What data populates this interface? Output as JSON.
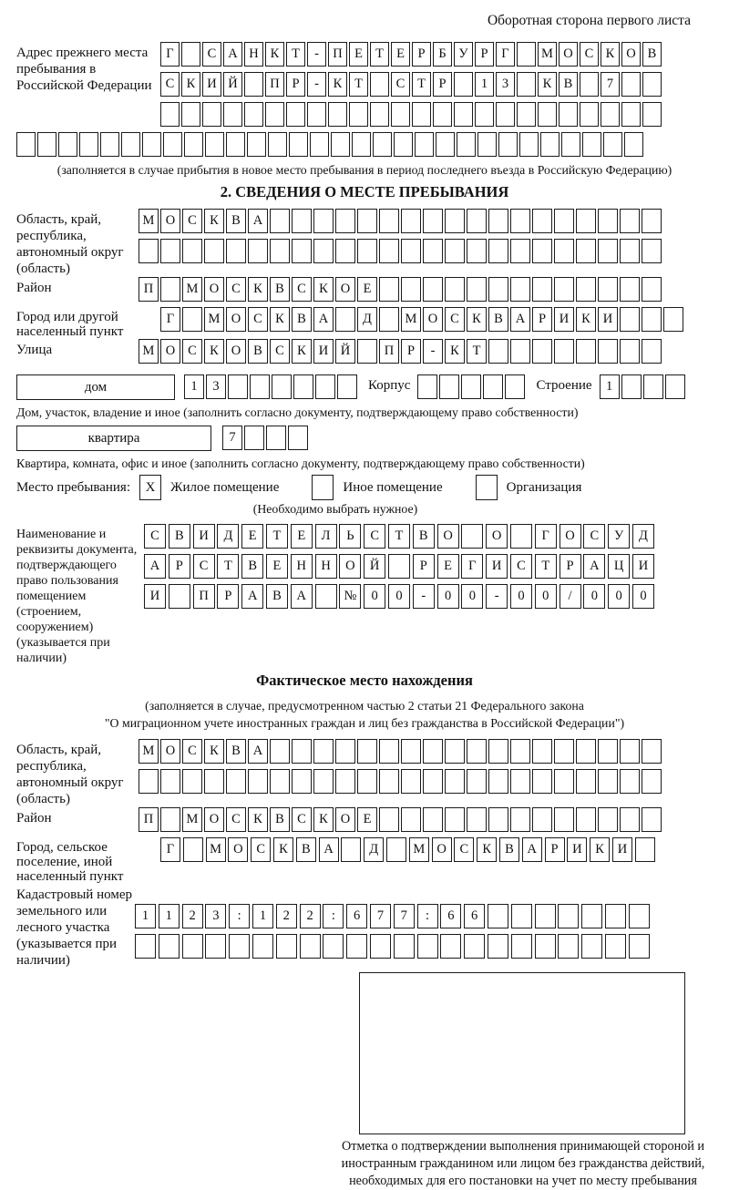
{
  "page": {
    "header_note": "Оборотная сторона первого листа"
  },
  "prev_address": {
    "label": "Адрес прежнего места пребывания в Российской Федерации",
    "row1": [
      "Г",
      "",
      "С",
      "А",
      "Н",
      "К",
      "Т",
      "-",
      "П",
      "Е",
      "Т",
      "Е",
      "Р",
      "Б",
      "У",
      "Р",
      "Г",
      "",
      "М",
      "О",
      "С",
      "К",
      "О",
      "В"
    ],
    "row2": [
      "С",
      "К",
      "И",
      "Й",
      "",
      "П",
      "Р",
      "-",
      "К",
      "Т",
      "",
      "С",
      "Т",
      "Р",
      "",
      "1",
      "3",
      "",
      "К",
      "В",
      "",
      "7",
      "",
      ""
    ],
    "row3": [
      "",
      "",
      "",
      "",
      "",
      "",
      "",
      "",
      "",
      "",
      "",
      "",
      "",
      "",
      "",
      "",
      "",
      "",
      "",
      "",
      "",
      "",
      "",
      ""
    ],
    "full_row": [
      "",
      "",
      "",
      "",
      "",
      "",
      "",
      "",
      "",
      "",
      "",
      "",
      "",
      "",
      "",
      "",
      "",
      "",
      "",
      "",
      "",
      "",
      "",
      "",
      "",
      "",
      "",
      "",
      "",
      ""
    ],
    "caption": "(заполняется в случае прибытия в новое место пребывания в период последнего въезда в Российскую Федерацию)"
  },
  "section2": {
    "title": "2. СВЕДЕНИЯ О МЕСТЕ ПРЕБЫВАНИЯ",
    "region": {
      "label": "Область, край, республика, автономный округ (область)",
      "row1": [
        "М",
        "О",
        "С",
        "К",
        "В",
        "А",
        "",
        "",
        "",
        "",
        "",
        "",
        "",
        "",
        "",
        "",
        "",
        "",
        "",
        "",
        "",
        "",
        "",
        ""
      ],
      "row2": [
        "",
        "",
        "",
        "",
        "",
        "",
        "",
        "",
        "",
        "",
        "",
        "",
        "",
        "",
        "",
        "",
        "",
        "",
        "",
        "",
        "",
        "",
        "",
        ""
      ]
    },
    "district": {
      "label": "Район",
      "row": [
        "П",
        "",
        "М",
        "О",
        "С",
        "К",
        "В",
        "С",
        "К",
        "О",
        "Е",
        "",
        "",
        "",
        "",
        "",
        "",
        "",
        "",
        "",
        "",
        "",
        "",
        ""
      ]
    },
    "city": {
      "label": "Город или другой населенный пункт",
      "row": [
        "Г",
        "",
        "М",
        "О",
        "С",
        "К",
        "В",
        "А",
        "",
        "Д",
        "",
        "М",
        "О",
        "С",
        "К",
        "В",
        "А",
        "Р",
        "И",
        "К",
        "И",
        "",
        "",
        ""
      ]
    },
    "street": {
      "label": "Улица",
      "row": [
        "М",
        "О",
        "С",
        "К",
        "О",
        "В",
        "С",
        "К",
        "И",
        "Й",
        "",
        "П",
        "Р",
        "-",
        "К",
        "Т",
        "",
        "",
        "",
        "",
        "",
        "",
        "",
        ""
      ]
    },
    "house": {
      "box_label": "дом",
      "cells": [
        "1",
        "3",
        "",
        "",
        "",
        "",
        "",
        ""
      ],
      "korpus_label": "Корпус",
      "korpus_cells": [
        "",
        "",
        "",
        "",
        ""
      ],
      "stroenie_label": "Строение",
      "stroenie_cells": [
        "1",
        "",
        "",
        ""
      ]
    },
    "house_caption": "Дом, участок, владение и иное (заполнить согласно документу, подтверждающему право собственности)",
    "apartment": {
      "box_label": "квартира",
      "cells": [
        "7",
        "",
        "",
        ""
      ]
    },
    "apartment_caption": "Квартира, комната, офис и иное (заполнить согласно документу, подтверждающему право собственности)",
    "stay": {
      "label": "Место пребывания:",
      "options": [
        {
          "label": "Жилое помещение",
          "mark": "X"
        },
        {
          "label": "Иное помещение",
          "mark": ""
        },
        {
          "label": "Организация",
          "mark": ""
        }
      ],
      "note": "(Необходимо выбрать нужное)"
    },
    "doc": {
      "label": "Наименование и реквизиты документа, подтверждающего право пользования помещением (строением, сооружением) (указывается при наличии)",
      "row1": [
        "С",
        "В",
        "И",
        "Д",
        "Е",
        "Т",
        "Е",
        "Л",
        "Ь",
        "С",
        "Т",
        "В",
        "О",
        "",
        "О",
        "",
        "Г",
        "О",
        "С",
        "У",
        "Д"
      ],
      "row2": [
        "А",
        "Р",
        "С",
        "Т",
        "В",
        "Е",
        "Н",
        "Н",
        "О",
        "Й",
        "",
        "Р",
        "Е",
        "Г",
        "И",
        "С",
        "Т",
        "Р",
        "А",
        "Ц",
        "И"
      ],
      "row3": [
        "И",
        "",
        "П",
        "Р",
        "А",
        "В",
        "А",
        "",
        "№",
        "0",
        "0",
        "-",
        "0",
        "0",
        "-",
        "0",
        "0",
        "/",
        "0",
        "0",
        "0"
      ]
    }
  },
  "actual_location": {
    "title": "Фактическое место нахождения",
    "caption_line1": "(заполняется в случае, предусмотренном частью 2 статьи 21 Федерального закона",
    "caption_line2": "\"О миграционном учете иностранных граждан и лиц без гражданства в Российской Федерации\")",
    "region": {
      "label": "Область, край, республика, автономный округ (область)",
      "row1": [
        "М",
        "О",
        "С",
        "К",
        "В",
        "А",
        "",
        "",
        "",
        "",
        "",
        "",
        "",
        "",
        "",
        "",
        "",
        "",
        "",
        "",
        "",
        "",
        "",
        ""
      ],
      "row2": [
        "",
        "",
        "",
        "",
        "",
        "",
        "",
        "",
        "",
        "",
        "",
        "",
        "",
        "",
        "",
        "",
        "",
        "",
        "",
        "",
        "",
        "",
        "",
        ""
      ]
    },
    "district": {
      "label": "Район",
      "row": [
        "П",
        "",
        "М",
        "О",
        "С",
        "К",
        "В",
        "С",
        "К",
        "О",
        "Е",
        "",
        "",
        "",
        "",
        "",
        "",
        "",
        "",
        "",
        "",
        "",
        "",
        ""
      ]
    },
    "city": {
      "label": "Город, сельское поселение, иной населенный пункт",
      "row": [
        "Г",
        "",
        "М",
        "О",
        "С",
        "К",
        "В",
        "А",
        "",
        "Д",
        "",
        "М",
        "О",
        "С",
        "К",
        "В",
        "А",
        "Р",
        "И",
        "К",
        "И",
        ""
      ]
    },
    "cadastral": {
      "label": "Кадастровый номер земельного или лесного участка (указывается при наличии)",
      "row1": [
        "1",
        "1",
        "2",
        "3",
        ":",
        "1",
        "2",
        "2",
        ":",
        "6",
        "7",
        "7",
        ":",
        "6",
        "6",
        "",
        "",
        "",
        "",
        "",
        "",
        ""
      ],
      "row2": [
        "",
        "",
        "",
        "",
        "",
        "",
        "",
        "",
        "",
        "",
        "",
        "",
        "",
        "",
        "",
        "",
        "",
        "",
        "",
        "",
        "",
        ""
      ]
    },
    "stamp_caption": "Отметка о подтверждении выполнения принимающей стороной и иностранным гражданином или лицом без гражданства действий, необходимых для его постановки на учет по месту пребывания"
  }
}
